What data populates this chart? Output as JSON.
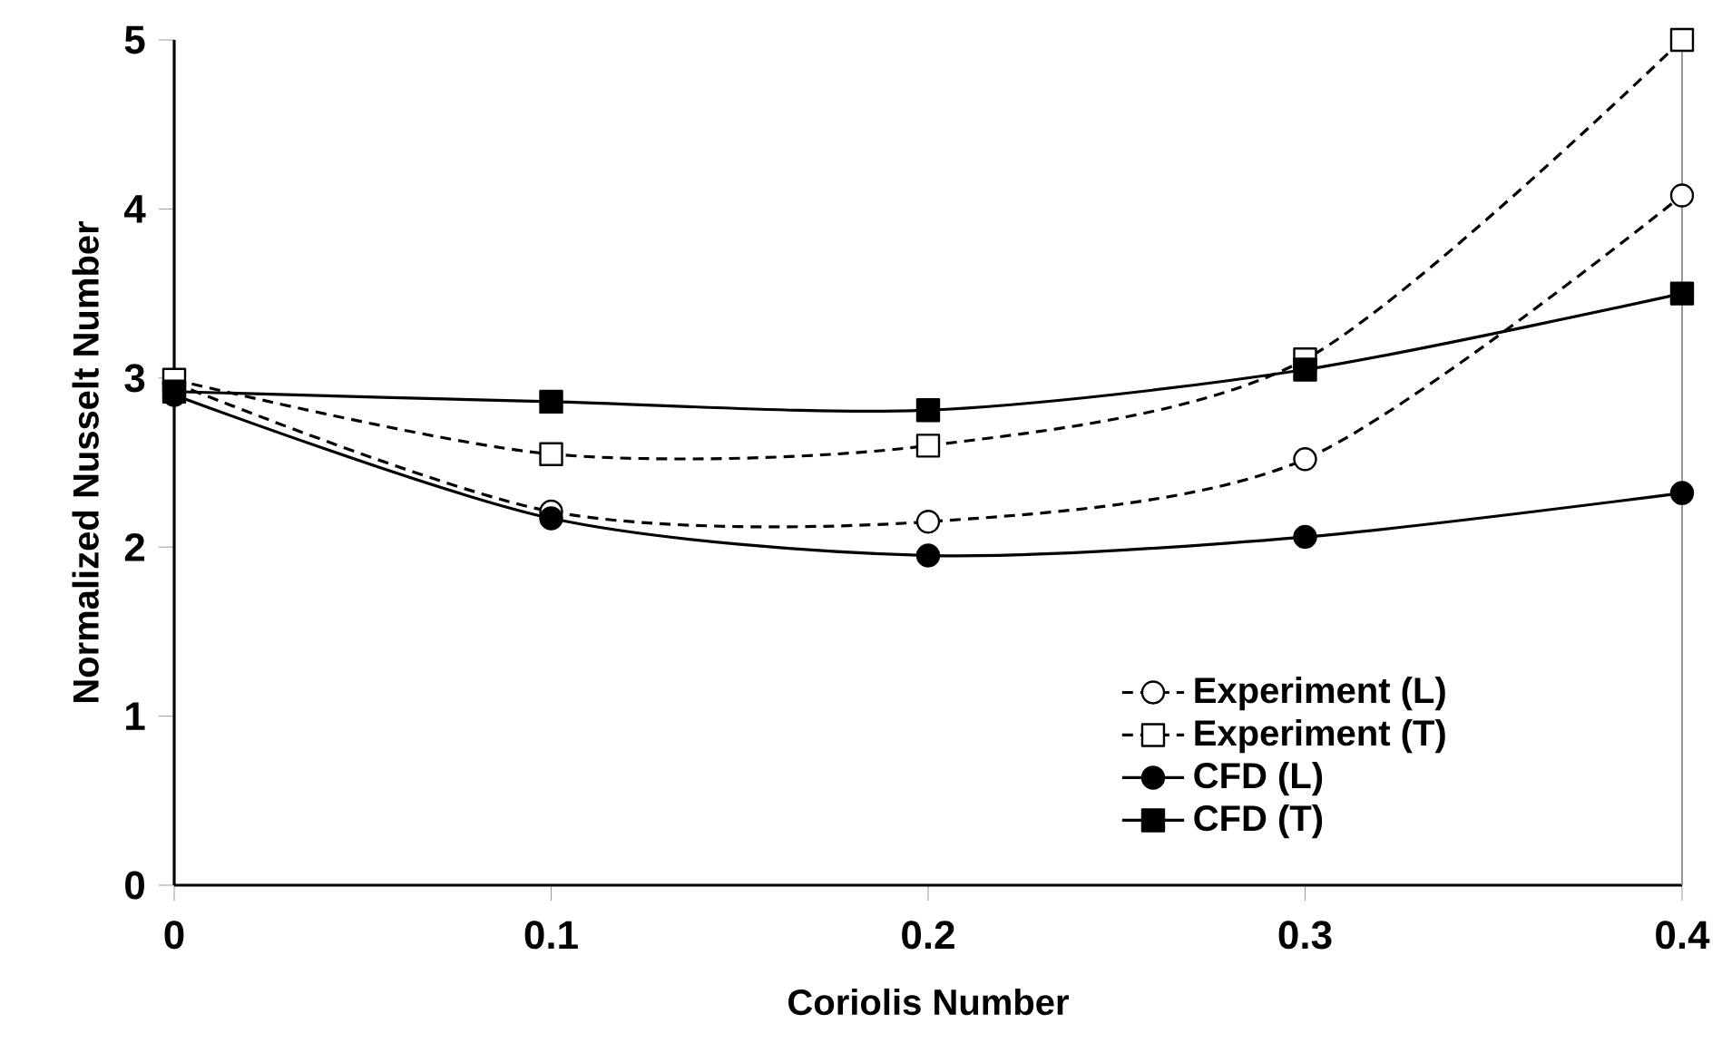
{
  "chart_data": {
    "type": "line",
    "xlabel": "Coriolis Number",
    "ylabel": "Normalized Nusselt Number",
    "x": [
      0,
      0.1,
      0.2,
      0.3,
      0.4
    ],
    "xlim": [
      0,
      0.4
    ],
    "xticks": [
      0,
      0.1,
      0.2,
      0.3,
      0.4
    ],
    "ylim": [
      0,
      5
    ],
    "yticks": [
      0,
      1,
      2,
      3,
      4,
      5
    ],
    "grid": false,
    "legend": "bottom right",
    "series": [
      {
        "name": "Experiment (L)",
        "color": "#000000",
        "marker": "circle",
        "line_style": "dashed",
        "values": [
          2.97,
          2.21,
          2.15,
          2.52,
          4.08
        ]
      },
      {
        "name": "Experiment (T)",
        "color": "#000000",
        "marker": "square",
        "line_style": "dashed",
        "values": [
          2.99,
          2.55,
          2.6,
          3.11,
          5.0
        ]
      },
      {
        "name": "CFD (L)",
        "color": "#000000",
        "marker": "circle",
        "line_style": "solid",
        "values": [
          2.9,
          2.17,
          1.95,
          2.06,
          2.32
        ]
      },
      {
        "name": "CFD (T)",
        "color": "#000000",
        "marker": "square",
        "line_style": "solid",
        "values": [
          2.92,
          2.86,
          2.81,
          3.05,
          3.5
        ]
      }
    ]
  }
}
